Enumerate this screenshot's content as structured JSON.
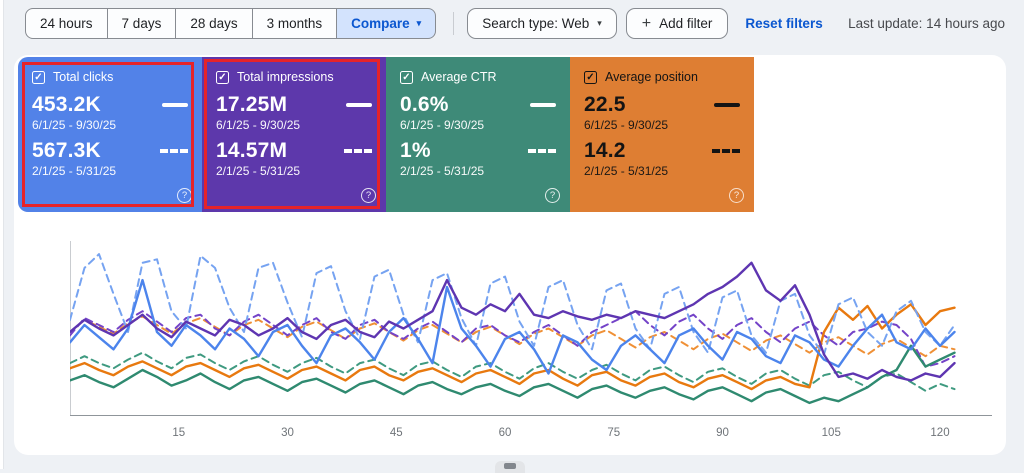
{
  "toolbar": {
    "time_ranges": [
      "24 hours",
      "7 days",
      "28 days",
      "3 months"
    ],
    "compare_label": "Compare",
    "search_type_label": "Search type: Web",
    "add_filter_label": "Add filter",
    "reset_filters_label": "Reset filters",
    "last_update": "Last update: 14 hours ago"
  },
  "icons": {
    "compare-caret": "▾",
    "search-type-caret": "▾",
    "add-filter-plus": "+",
    "checkbox-check": "✓",
    "help": "?"
  },
  "colors": {
    "clicks": "#5282e8",
    "impressions": "#5d38ab",
    "ctr": "#3e8a78",
    "position": "#de7e33",
    "annotation_red": "#e62329",
    "accent_blue": "#0b57d0",
    "compare_chip_bg": "#d3e3fd"
  },
  "cards": [
    {
      "label": "Total clicks",
      "checked": true,
      "value_current": "453.2K",
      "period_current": "6/1/25 - 9/30/25",
      "value_previous": "567.3K",
      "period_previous": "2/1/25 - 5/31/25",
      "color": "#5282e8",
      "annotated": true
    },
    {
      "label": "Total impressions",
      "checked": true,
      "value_current": "17.25M",
      "period_current": "6/1/25 - 9/30/25",
      "value_previous": "14.57M",
      "period_previous": "2/1/25 - 5/31/25",
      "color": "#5d38ab",
      "annotated": true
    },
    {
      "label": "Average CTR",
      "checked": true,
      "value_current": "0.6%",
      "period_current": "6/1/25 - 9/30/25",
      "value_previous": "1%",
      "period_previous": "2/1/25 - 5/31/25",
      "color": "#3e8a78",
      "annotated": false
    },
    {
      "label": "Average position",
      "checked": true,
      "value_current": "22.5",
      "period_current": "6/1/25 - 9/30/25",
      "value_previous": "14.2",
      "period_previous": "2/1/25 - 5/31/25",
      "color": "#de7e33",
      "annotated": false
    }
  ],
  "chart_data": {
    "type": "line",
    "title": "",
    "xlabel": "",
    "ylabel": "",
    "x_ticks": [
      15,
      30,
      45,
      60,
      75,
      90,
      105,
      120
    ],
    "x_range": [
      0,
      127
    ],
    "grid": false,
    "legend_position": "none",
    "values_scale": "percent of plot height (no y-axis labels shown); points sampled every 2 days over the 4-month window",
    "series": [
      {
        "id": "position-previous",
        "name": "Average position 2/1/25 - 5/31/25",
        "style": "dashed",
        "color": "#ef9036",
        "values": [
          48,
          55,
          51,
          47,
          53,
          57,
          52,
          47,
          53,
          56,
          51,
          46,
          52,
          55,
          50,
          45,
          51,
          54,
          49,
          44,
          50,
          53,
          48,
          43,
          49,
          52,
          47,
          42,
          48,
          51,
          46,
          41,
          47,
          50,
          45,
          40,
          46,
          49,
          44,
          39,
          45,
          48,
          43,
          38,
          44,
          47,
          42,
          37,
          43,
          46,
          41,
          36,
          42,
          45,
          40,
          35,
          41,
          44,
          39,
          34,
          40,
          38
        ]
      },
      {
        "id": "ctr-previous",
        "name": "Average CTR 2/1/25 - 5/31/25",
        "style": "dashed",
        "color": "#3f9a80",
        "values": [
          30,
          34,
          30,
          27,
          32,
          36,
          31,
          27,
          33,
          35,
          30,
          26,
          31,
          34,
          29,
          25,
          30,
          33,
          28,
          24,
          30,
          32,
          27,
          23,
          29,
          31,
          26,
          22,
          28,
          30,
          25,
          21,
          27,
          30,
          25,
          21,
          26,
          29,
          24,
          20,
          26,
          28,
          23,
          19,
          25,
          27,
          22,
          18,
          24,
          26,
          21,
          17,
          23,
          25,
          20,
          16,
          22,
          24,
          19,
          14,
          18,
          15
        ]
      },
      {
        "id": "impressions-previous",
        "name": "Total impressions 2/1/25 - 5/31/25",
        "style": "dashed",
        "color": "#7443c8",
        "values": [
          46,
          56,
          52,
          48,
          55,
          60,
          54,
          48,
          56,
          58,
          50,
          46,
          54,
          58,
          52,
          46,
          52,
          56,
          48,
          44,
          52,
          55,
          48,
          44,
          50,
          54,
          48,
          42,
          50,
          52,
          46,
          42,
          48,
          52,
          46,
          40,
          48,
          52,
          56,
          60,
          52,
          46,
          54,
          58,
          50,
          44,
          52,
          56,
          48,
          42,
          50,
          54,
          46,
          40,
          48,
          50,
          54,
          52,
          44,
          28,
          30,
          34
        ]
      },
      {
        "id": "ctr-current",
        "name": "Average CTR 6/1/25 - 9/30/25",
        "style": "solid",
        "color": "#2f8a70",
        "values": [
          20,
          23,
          19,
          16,
          21,
          26,
          22,
          17,
          20,
          24,
          19,
          15,
          20,
          22,
          18,
          14,
          19,
          21,
          17,
          13,
          18,
          20,
          16,
          12,
          17,
          19,
          15,
          12,
          16,
          18,
          14,
          11,
          16,
          18,
          14,
          10,
          15,
          17,
          13,
          10,
          14,
          16,
          12,
          9,
          14,
          16,
          12,
          8,
          13,
          15,
          11,
          7,
          10,
          8,
          12,
          16,
          22,
          26,
          40,
          28,
          32,
          36
        ]
      },
      {
        "id": "position-current",
        "name": "Average position 6/1/25 - 9/30/25",
        "style": "solid",
        "color": "#e8790f",
        "values": [
          27,
          30,
          26,
          23,
          28,
          31,
          27,
          23,
          28,
          30,
          26,
          22,
          27,
          29,
          25,
          21,
          26,
          28,
          24,
          20,
          26,
          28,
          23,
          20,
          25,
          27,
          23,
          19,
          24,
          26,
          22,
          18,
          24,
          26,
          21,
          17,
          23,
          25,
          20,
          17,
          22,
          24,
          19,
          16,
          21,
          23,
          19,
          15,
          20,
          22,
          18,
          16,
          48,
          62,
          55,
          63,
          50,
          58,
          64,
          52,
          60,
          62
        ]
      },
      {
        "id": "clicks-previous",
        "name": "Total clicks 2/1/25 - 5/31/25",
        "style": "dashed",
        "color": "#76a3f1",
        "values": [
          55,
          85,
          93,
          70,
          48,
          88,
          90,
          60,
          50,
          92,
          85,
          62,
          48,
          85,
          88,
          65,
          45,
          82,
          86,
          60,
          44,
          80,
          84,
          58,
          42,
          78,
          82,
          56,
          40,
          76,
          80,
          54,
          40,
          74,
          78,
          52,
          38,
          72,
          76,
          50,
          38,
          70,
          74,
          48,
          36,
          68,
          72,
          46,
          36,
          66,
          70,
          46,
          35,
          64,
          68,
          48,
          40,
          60,
          66,
          48,
          40,
          52
        ]
      },
      {
        "id": "clicks-current",
        "name": "Total clicks 6/1/25 - 9/30/25",
        "style": "solid",
        "color": "#4c84ec",
        "values": [
          42,
          52,
          45,
          38,
          50,
          78,
          48,
          40,
          52,
          46,
          38,
          50,
          44,
          34,
          48,
          52,
          40,
          30,
          46,
          50,
          42,
          32,
          48,
          56,
          44,
          30,
          74,
          50,
          40,
          28,
          44,
          48,
          38,
          24,
          46,
          42,
          32,
          26,
          40,
          46,
          38,
          30,
          46,
          50,
          40,
          32,
          48,
          44,
          34,
          30,
          46,
          42,
          32,
          28,
          40,
          50,
          58,
          42,
          38,
          50,
          40,
          48
        ]
      },
      {
        "id": "impressions-current",
        "name": "Total impressions 6/1/25 - 9/30/25",
        "style": "solid",
        "color": "#5e35b1",
        "values": [
          48,
          55,
          50,
          46,
          52,
          58,
          50,
          45,
          54,
          50,
          46,
          55,
          52,
          46,
          50,
          56,
          48,
          44,
          52,
          55,
          48,
          45,
          54,
          50,
          55,
          60,
          78,
          62,
          58,
          64,
          60,
          70,
          58,
          56,
          60,
          57,
          55,
          58,
          56,
          60,
          58,
          56,
          60,
          64,
          70,
          74,
          80,
          88,
          72,
          66,
          75,
          58,
          35,
          22,
          24,
          21,
          26,
          22,
          20,
          24,
          22,
          30
        ]
      }
    ]
  }
}
